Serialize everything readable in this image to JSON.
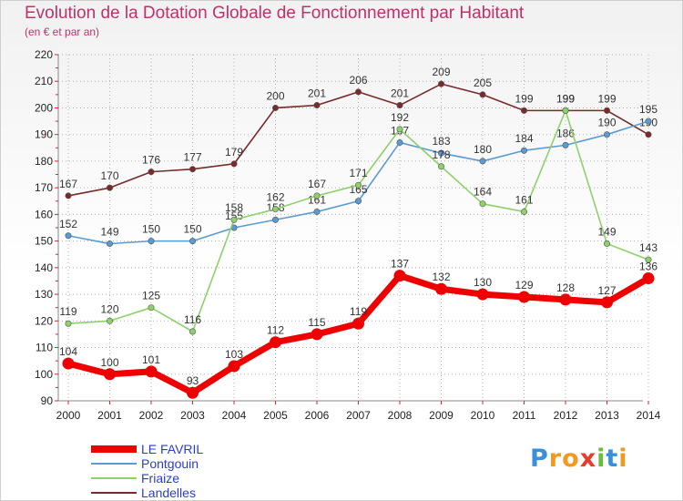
{
  "chart_data": {
    "type": "line",
    "title": "Evolution de la Dotation Globale de Fonctionnement par Habitant",
    "subtitle": "(en € et par an)",
    "x": [
      "2000",
      "2001",
      "2002",
      "2003",
      "2004",
      "2005",
      "2006",
      "2007",
      "2008",
      "2009",
      "2010",
      "2011",
      "2012",
      "2013",
      "2014"
    ],
    "ylim": [
      90,
      220
    ],
    "yticks": [
      90,
      100,
      110,
      120,
      130,
      140,
      150,
      160,
      170,
      180,
      190,
      200,
      210,
      220
    ],
    "grid": true,
    "legend_position": "bottom-left",
    "series": [
      {
        "name": "LE FAVRIL",
        "color": "#ee0000",
        "values": [
          104,
          100,
          101,
          93,
          103,
          112,
          115,
          119,
          137,
          132,
          130,
          129,
          128,
          127,
          136
        ]
      },
      {
        "name": "Pontgouin",
        "color": "#5a9bd4",
        "values": [
          152,
          149,
          150,
          150,
          155,
          158,
          161,
          165,
          187,
          183,
          180,
          184,
          186,
          190,
          195
        ]
      },
      {
        "name": "Friaize",
        "color": "#8ed16a",
        "values": [
          119,
          120,
          125,
          116,
          158,
          162,
          167,
          171,
          192,
          178,
          164,
          161,
          199,
          149,
          143
        ]
      },
      {
        "name": "Landelles",
        "color": "#7a2a2a",
        "values": [
          167,
          170,
          176,
          177,
          179,
          200,
          201,
          206,
          201,
          209,
          205,
          199,
          199,
          199,
          190
        ]
      }
    ]
  },
  "logo": {
    "letters": [
      "P",
      "r",
      "o",
      "x",
      "i",
      "t",
      "i"
    ],
    "colors": [
      "#3a8fd9",
      "#f39a1e",
      "#f39a1e",
      "#e63c2e",
      "#6abf3a",
      "#3a8fd9",
      "#f39a1e"
    ]
  }
}
